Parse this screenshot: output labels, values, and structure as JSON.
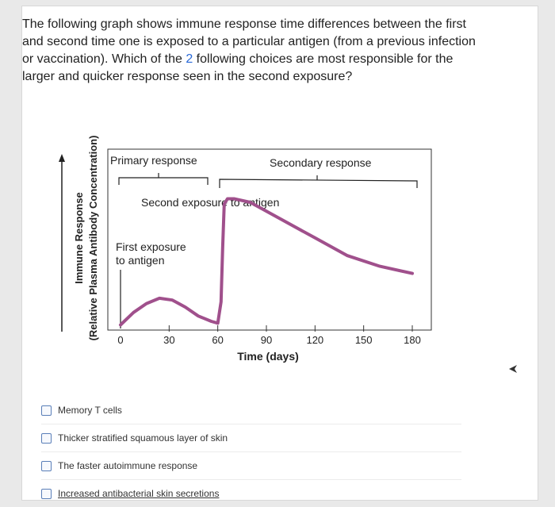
{
  "question": {
    "text_before": "The following graph shows immune response time differences between the first and second time one is exposed to a particular antigen (from a previous infection or vaccination). Which of the ",
    "highlight": "2",
    "text_after": " following choices are most responsible for the larger and quicker response seen in the second exposure?"
  },
  "figure": {
    "y_axis_title_line1": "Immune Response",
    "y_axis_title_line2": "(Relative Plasma Antibody Concentration)",
    "x_axis_title": "Time (days)",
    "primary_label": "Primary response",
    "secondary_label": "Secondary response",
    "second_exposure_label": "Second exposure to antigen",
    "first_exposure_line1": "First exposure",
    "first_exposure_line2": "to antigen",
    "line_color": "#a0508c"
  },
  "chart_data": {
    "type": "line",
    "x_ticks": [
      "0",
      "30",
      "60",
      "90",
      "120",
      "150",
      "180"
    ],
    "xlabel": "Time (days)",
    "ylabel": "Immune Response (Relative Plasma Antibody Concentration)",
    "xlim": [
      0,
      180
    ],
    "ylim": [
      0,
      10
    ],
    "series": [
      {
        "x": [
          0,
          8,
          16,
          24,
          32,
          40,
          48,
          56,
          60,
          62,
          63,
          64,
          66,
          70,
          80,
          100,
          120,
          140,
          160,
          180
        ],
        "y": [
          0.2,
          0.9,
          1.4,
          1.7,
          1.6,
          1.2,
          0.7,
          0.4,
          0.3,
          1.5,
          4.5,
          7.0,
          7.3,
          7.3,
          7.1,
          6.1,
          5.1,
          4.1,
          3.5,
          3.1
        ]
      }
    ]
  },
  "options": [
    {
      "label": "Memory T cells"
    },
    {
      "label": "Thicker stratified squamous layer of skin"
    },
    {
      "label": "The faster autoimmune response"
    },
    {
      "label": "Increased antibacterial skin secretions"
    }
  ]
}
